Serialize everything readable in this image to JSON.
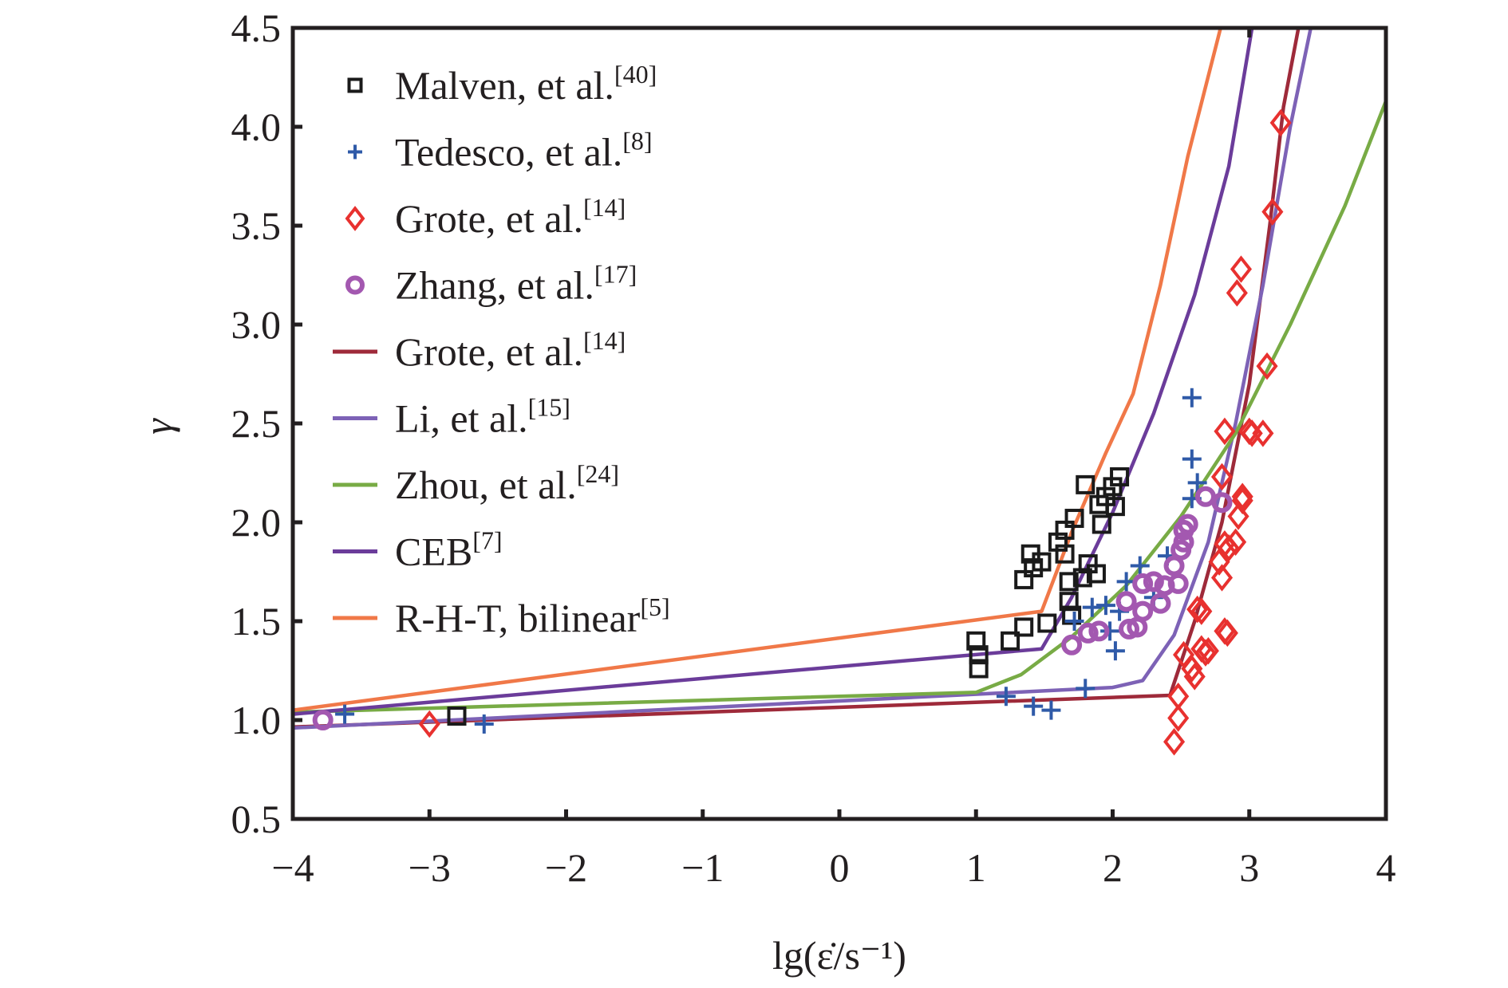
{
  "chart_data": {
    "type": "scatter",
    "title": "",
    "xlabel": "lg(ε̇/s⁻¹)",
    "ylabel": "γ",
    "xlim": [
      -4,
      4
    ],
    "ylim": [
      0.5,
      4.5
    ],
    "grid": false,
    "legend_position": "top-left",
    "x_ticks": [
      "−4",
      "−3",
      "−2",
      "−1",
      "0",
      "1",
      "2",
      "3",
      "4"
    ],
    "x_tick_values": [
      -4,
      -3,
      -2,
      -1,
      0,
      1,
      2,
      3,
      4
    ],
    "y_ticks": [
      "0.5",
      "1.0",
      "1.5",
      "2.0",
      "2.5",
      "3.0",
      "3.5",
      "4.0",
      "4.5"
    ],
    "y_tick_values": [
      0.5,
      1.0,
      1.5,
      2.0,
      2.5,
      3.0,
      3.5,
      4.0,
      4.5
    ],
    "series": [
      {
        "name": "Malven, et al.",
        "ref": "[40]",
        "kind": "marker",
        "marker": "square",
        "color": "#1a1a1a",
        "points": [
          [
            -2.8,
            1.02
          ],
          [
            1.0,
            1.4
          ],
          [
            1.02,
            1.33
          ],
          [
            1.02,
            1.26
          ],
          [
            1.25,
            1.4
          ],
          [
            1.35,
            1.47
          ],
          [
            1.35,
            1.71
          ],
          [
            1.4,
            1.84
          ],
          [
            1.42,
            1.77
          ],
          [
            1.48,
            1.8
          ],
          [
            1.52,
            1.49
          ],
          [
            1.6,
            1.9
          ],
          [
            1.65,
            1.96
          ],
          [
            1.65,
            1.84
          ],
          [
            1.68,
            1.7
          ],
          [
            1.7,
            1.53
          ],
          [
            1.68,
            1.6
          ],
          [
            1.72,
            2.02
          ],
          [
            1.78,
            1.72
          ],
          [
            1.8,
            2.19
          ],
          [
            1.82,
            1.79
          ],
          [
            1.88,
            1.74
          ],
          [
            1.9,
            2.09
          ],
          [
            1.92,
            1.99
          ],
          [
            1.95,
            2.13
          ],
          [
            2.0,
            2.18
          ],
          [
            2.02,
            2.08
          ],
          [
            2.05,
            2.23
          ]
        ]
      },
      {
        "name": "Tedesco, et al.",
        "ref": "[8]",
        "kind": "marker",
        "marker": "plus",
        "color": "#2f5aa8",
        "points": [
          [
            -3.62,
            1.03
          ],
          [
            -2.6,
            0.98
          ],
          [
            1.22,
            1.12
          ],
          [
            1.42,
            1.07
          ],
          [
            1.55,
            1.05
          ],
          [
            1.8,
            1.16
          ],
          [
            1.72,
            1.5
          ],
          [
            1.85,
            1.57
          ],
          [
            1.95,
            1.58
          ],
          [
            1.98,
            1.45
          ],
          [
            2.02,
            1.35
          ],
          [
            2.05,
            1.55
          ],
          [
            2.1,
            1.7
          ],
          [
            2.2,
            1.78
          ],
          [
            2.4,
            1.83
          ],
          [
            2.58,
            2.63
          ],
          [
            2.58,
            2.32
          ],
          [
            2.62,
            2.2
          ],
          [
            2.58,
            2.12
          ],
          [
            2.3,
            1.62
          ]
        ]
      },
      {
        "name": "Grote, et al.",
        "ref": "[14]",
        "kind": "marker",
        "marker": "diamond",
        "color": "#e8312f",
        "points": [
          [
            -3.0,
            0.98
          ],
          [
            2.45,
            0.89
          ],
          [
            2.48,
            1.01
          ],
          [
            2.48,
            1.12
          ],
          [
            2.52,
            1.33
          ],
          [
            2.6,
            1.22
          ],
          [
            2.58,
            1.26
          ],
          [
            2.62,
            1.56
          ],
          [
            2.65,
            1.55
          ],
          [
            2.65,
            1.36
          ],
          [
            2.68,
            1.34
          ],
          [
            2.7,
            1.35
          ],
          [
            2.78,
            1.8
          ],
          [
            2.8,
            1.72
          ],
          [
            2.82,
            1.45
          ],
          [
            2.84,
            1.44
          ],
          [
            2.82,
            1.89
          ],
          [
            2.85,
            1.87
          ],
          [
            2.8,
            2.23
          ],
          [
            2.82,
            2.46
          ],
          [
            2.9,
            1.9
          ],
          [
            2.92,
            2.03
          ],
          [
            2.95,
            2.13
          ],
          [
            2.95,
            2.11
          ],
          [
            3.0,
            2.46
          ],
          [
            3.02,
            2.45
          ],
          [
            3.1,
            2.45
          ],
          [
            3.13,
            2.79
          ],
          [
            2.91,
            3.16
          ],
          [
            2.94,
            3.28
          ],
          [
            3.17,
            3.57
          ],
          [
            3.23,
            4.02
          ]
        ]
      },
      {
        "name": "Zhang, et al.",
        "ref": "[17]",
        "kind": "marker",
        "marker": "circle",
        "color": "#a358b0",
        "points": [
          [
            -3.78,
            1.0
          ],
          [
            1.7,
            1.38
          ],
          [
            1.82,
            1.44
          ],
          [
            1.9,
            1.45
          ],
          [
            2.12,
            1.46
          ],
          [
            2.18,
            1.47
          ],
          [
            2.1,
            1.6
          ],
          [
            2.22,
            1.55
          ],
          [
            2.22,
            1.69
          ],
          [
            2.3,
            1.7
          ],
          [
            2.35,
            1.59
          ],
          [
            2.38,
            1.68
          ],
          [
            2.45,
            1.78
          ],
          [
            2.48,
            1.69
          ],
          [
            2.5,
            1.86
          ],
          [
            2.52,
            1.9
          ],
          [
            2.52,
            1.96
          ],
          [
            2.55,
            1.99
          ],
          [
            2.68,
            2.13
          ],
          [
            2.8,
            2.1
          ]
        ]
      },
      {
        "name": "Grote, et al.",
        "ref": "[14]",
        "kind": "line",
        "color": "#9e2a3a",
        "points": [
          [
            -4,
            0.965
          ],
          [
            2.42,
            1.125
          ],
          [
            2.6,
            1.5
          ],
          [
            2.8,
            2.0
          ],
          [
            3.0,
            2.7
          ],
          [
            3.15,
            3.5
          ],
          [
            3.25,
            4.1
          ],
          [
            3.36,
            4.5
          ]
        ]
      },
      {
        "name": "Li, et al.",
        "ref": "[15]",
        "kind": "line",
        "color": "#7d62b6",
        "points": [
          [
            -4,
            0.96
          ],
          [
            2.0,
            1.165
          ],
          [
            2.22,
            1.2
          ],
          [
            2.45,
            1.43
          ],
          [
            2.7,
            1.9
          ],
          [
            2.9,
            2.5
          ],
          [
            3.1,
            3.2
          ],
          [
            3.3,
            4.0
          ],
          [
            3.45,
            4.5
          ]
        ]
      },
      {
        "name": "Zhou, et al.",
        "ref": "[24]",
        "kind": "line",
        "color": "#78ab45",
        "points": [
          [
            -4,
            1.04
          ],
          [
            1.0,
            1.14
          ],
          [
            1.33,
            1.23
          ],
          [
            1.7,
            1.42
          ],
          [
            2.1,
            1.68
          ],
          [
            2.5,
            2.03
          ],
          [
            2.9,
            2.45
          ],
          [
            3.3,
            3.0
          ],
          [
            3.7,
            3.6
          ],
          [
            4.0,
            4.13
          ]
        ]
      },
      {
        "name": "CEB",
        "ref": "[7]",
        "kind": "line",
        "color": "#6b3c9a",
        "points": [
          [
            -4,
            1.03
          ],
          [
            1.48,
            1.36
          ],
          [
            1.7,
            1.62
          ],
          [
            2.0,
            2.05
          ],
          [
            2.3,
            2.55
          ],
          [
            2.6,
            3.15
          ],
          [
            2.85,
            3.8
          ],
          [
            3.02,
            4.5
          ]
        ]
      },
      {
        "name": "R-H-T, bilinear",
        "ref": "[5]",
        "kind": "line",
        "color": "#f07848",
        "points": [
          [
            -4,
            1.05
          ],
          [
            1.48,
            1.55
          ],
          [
            1.7,
            1.95
          ],
          [
            1.95,
            2.35
          ],
          [
            2.15,
            2.65
          ],
          [
            2.35,
            3.2
          ],
          [
            2.55,
            3.85
          ],
          [
            2.79,
            4.5
          ]
        ]
      }
    ]
  }
}
